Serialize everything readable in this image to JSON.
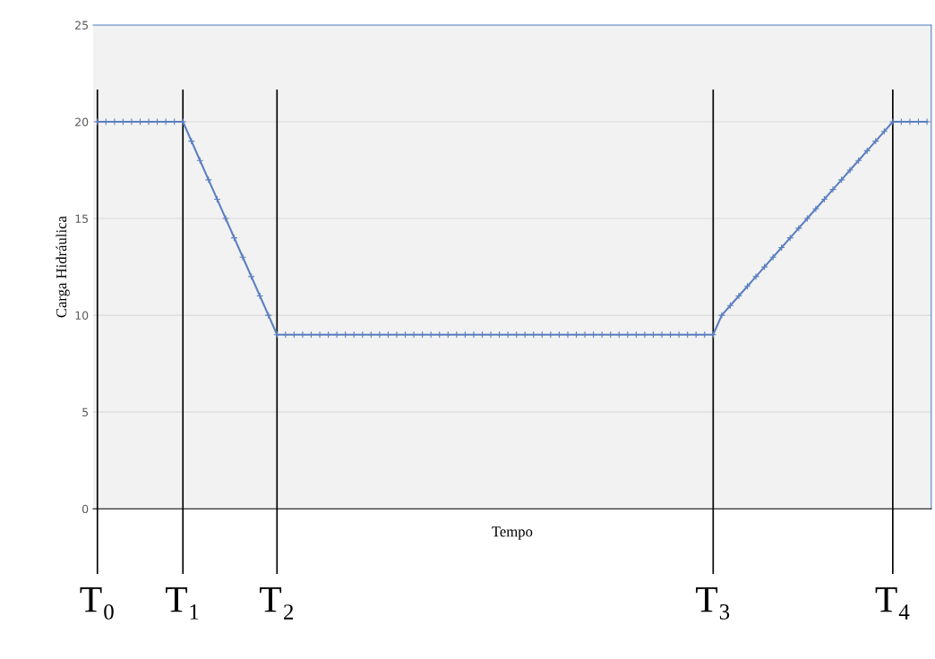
{
  "chart_data": {
    "type": "line",
    "xlabel": "Tempo",
    "ylabel": "Carga Hidráulica",
    "categories": [
      "T₀",
      null,
      null,
      null,
      null,
      null,
      null,
      null,
      null,
      null,
      "T₁",
      null,
      null,
      null,
      null,
      null,
      null,
      null,
      null,
      null,
      null,
      "T₂",
      null,
      null,
      null,
      null,
      null,
      null,
      null,
      null,
      null,
      null,
      null,
      null,
      null,
      null,
      null,
      null,
      null,
      null,
      null,
      null,
      null,
      null,
      null,
      null,
      null,
      null,
      null,
      null,
      null,
      null,
      null,
      null,
      null,
      null,
      null,
      null,
      null,
      null,
      null,
      null,
      null,
      null,
      null,
      null,
      null,
      null,
      null,
      null,
      null,
      null,
      "T₃",
      null,
      null,
      null,
      null,
      null,
      null,
      null,
      null,
      null,
      null,
      null,
      null,
      null,
      null,
      null,
      null,
      null,
      null,
      null,
      null,
      "T₄",
      null,
      null,
      null,
      null
    ],
    "series": [
      {
        "color": "#5b7fc0",
        "values": [
          20,
          20,
          20,
          20,
          20,
          20,
          20,
          20,
          20,
          20,
          20,
          19,
          18,
          17,
          16,
          15,
          14,
          13,
          12,
          11,
          10,
          9,
          9,
          9,
          9,
          9,
          9,
          9,
          9,
          9,
          9,
          9,
          9,
          9,
          9,
          9,
          9,
          9,
          9,
          9,
          9,
          9,
          9,
          9,
          9,
          9,
          9,
          9,
          9,
          9,
          9,
          9,
          9,
          9,
          9,
          9,
          9,
          9,
          9,
          9,
          9,
          9,
          9,
          9,
          9,
          9,
          9,
          9,
          9,
          9,
          9,
          9,
          9,
          10,
          10.5,
          11,
          11.5,
          12,
          12.5,
          13,
          13.5,
          14,
          14.5,
          15,
          15.5,
          16,
          16.5,
          17,
          17.5,
          18,
          18.5,
          19,
          19.5,
          20,
          20,
          20,
          20,
          20
        ]
      }
    ],
    "ylim": [
      0,
      25
    ],
    "yticks": [
      0,
      5,
      10,
      15,
      20,
      25
    ],
    "grid": "y",
    "marker": "cross",
    "line_style": "solid",
    "ref_lines": [
      {
        "axis": "x",
        "value": "T₀",
        "color": "#000000"
      },
      {
        "axis": "x",
        "value": "T₁",
        "color": "#000000"
      },
      {
        "axis": "x",
        "value": "T₂",
        "color": "#000000"
      },
      {
        "axis": "x",
        "value": "T₃",
        "color": "#000000"
      },
      {
        "axis": "x",
        "value": "T₄",
        "color": "#000000"
      }
    ]
  }
}
